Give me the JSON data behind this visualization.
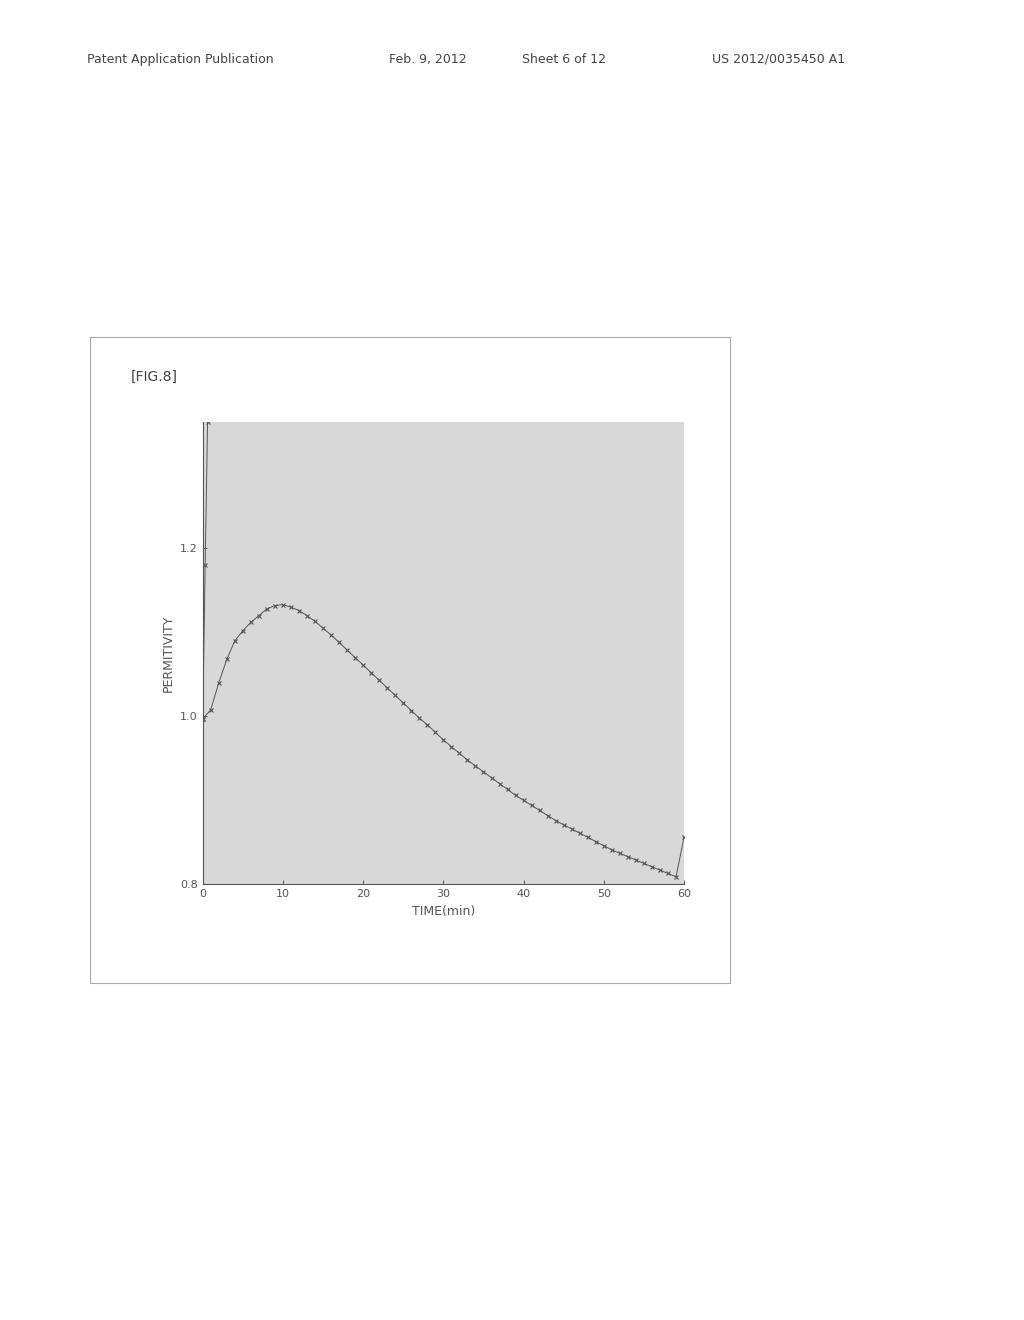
{
  "title": "[FIG.8]",
  "xlabel": "TIME(min)",
  "ylabel": "PERMITIVITY",
  "xlim": [
    0,
    60
  ],
  "ylim": [
    0.8,
    1.35
  ],
  "yticks": [
    0.8,
    1.0,
    1.2
  ],
  "xticks": [
    0,
    10,
    20,
    30,
    40,
    50,
    60
  ],
  "page_bg_color": "#ffffff",
  "box_bg_color": "#d8d8d8",
  "plot_bg_color": "#d8d8d8",
  "line_color": "#555555",
  "marker": "x",
  "marker_size": 3.5,
  "marker_color": "#555555",
  "line_width": 0.7,
  "fig_width": 10.24,
  "fig_height": 13.2,
  "data_x": [
    0,
    1,
    2,
    3,
    4,
    5,
    6,
    7,
    8,
    9,
    10,
    11,
    12,
    13,
    14,
    15,
    16,
    17,
    18,
    19,
    20,
    21,
    22,
    23,
    24,
    25,
    26,
    27,
    28,
    29,
    30,
    31,
    32,
    33,
    34,
    35,
    36,
    37,
    38,
    39,
    40,
    41,
    42,
    43,
    44,
    45,
    46,
    47,
    48,
    49,
    50,
    51,
    52,
    53,
    54,
    55,
    56,
    57,
    58,
    59,
    60
  ],
  "data_y": [
    0.997,
    1.008,
    1.04,
    1.068,
    1.09,
    1.102,
    1.112,
    1.12,
    1.128,
    1.132,
    1.133,
    1.13,
    1.126,
    1.12,
    1.113,
    1.105,
    1.097,
    1.088,
    1.079,
    1.07,
    1.061,
    1.052,
    1.043,
    1.034,
    1.025,
    1.016,
    1.007,
    0.998,
    0.99,
    0.981,
    0.972,
    0.964,
    0.956,
    0.948,
    0.941,
    0.934,
    0.927,
    0.92,
    0.913,
    0.906,
    0.9,
    0.894,
    0.888,
    0.882,
    0.876,
    0.871,
    0.866,
    0.861,
    0.856,
    0.851,
    0.846,
    0.841,
    0.837,
    0.833,
    0.829,
    0.825,
    0.821,
    0.817,
    0.813,
    0.809,
    0.856
  ],
  "header_left": "Patent Application Publication",
  "header_mid1": "Feb. 9, 2012",
  "header_mid2": "Sheet 6 of 12",
  "header_right": "US 2012/0035450 A1",
  "title_fontsize": 10,
  "header_fontsize": 9,
  "label_fontsize": 9,
  "tick_fontsize": 8
}
